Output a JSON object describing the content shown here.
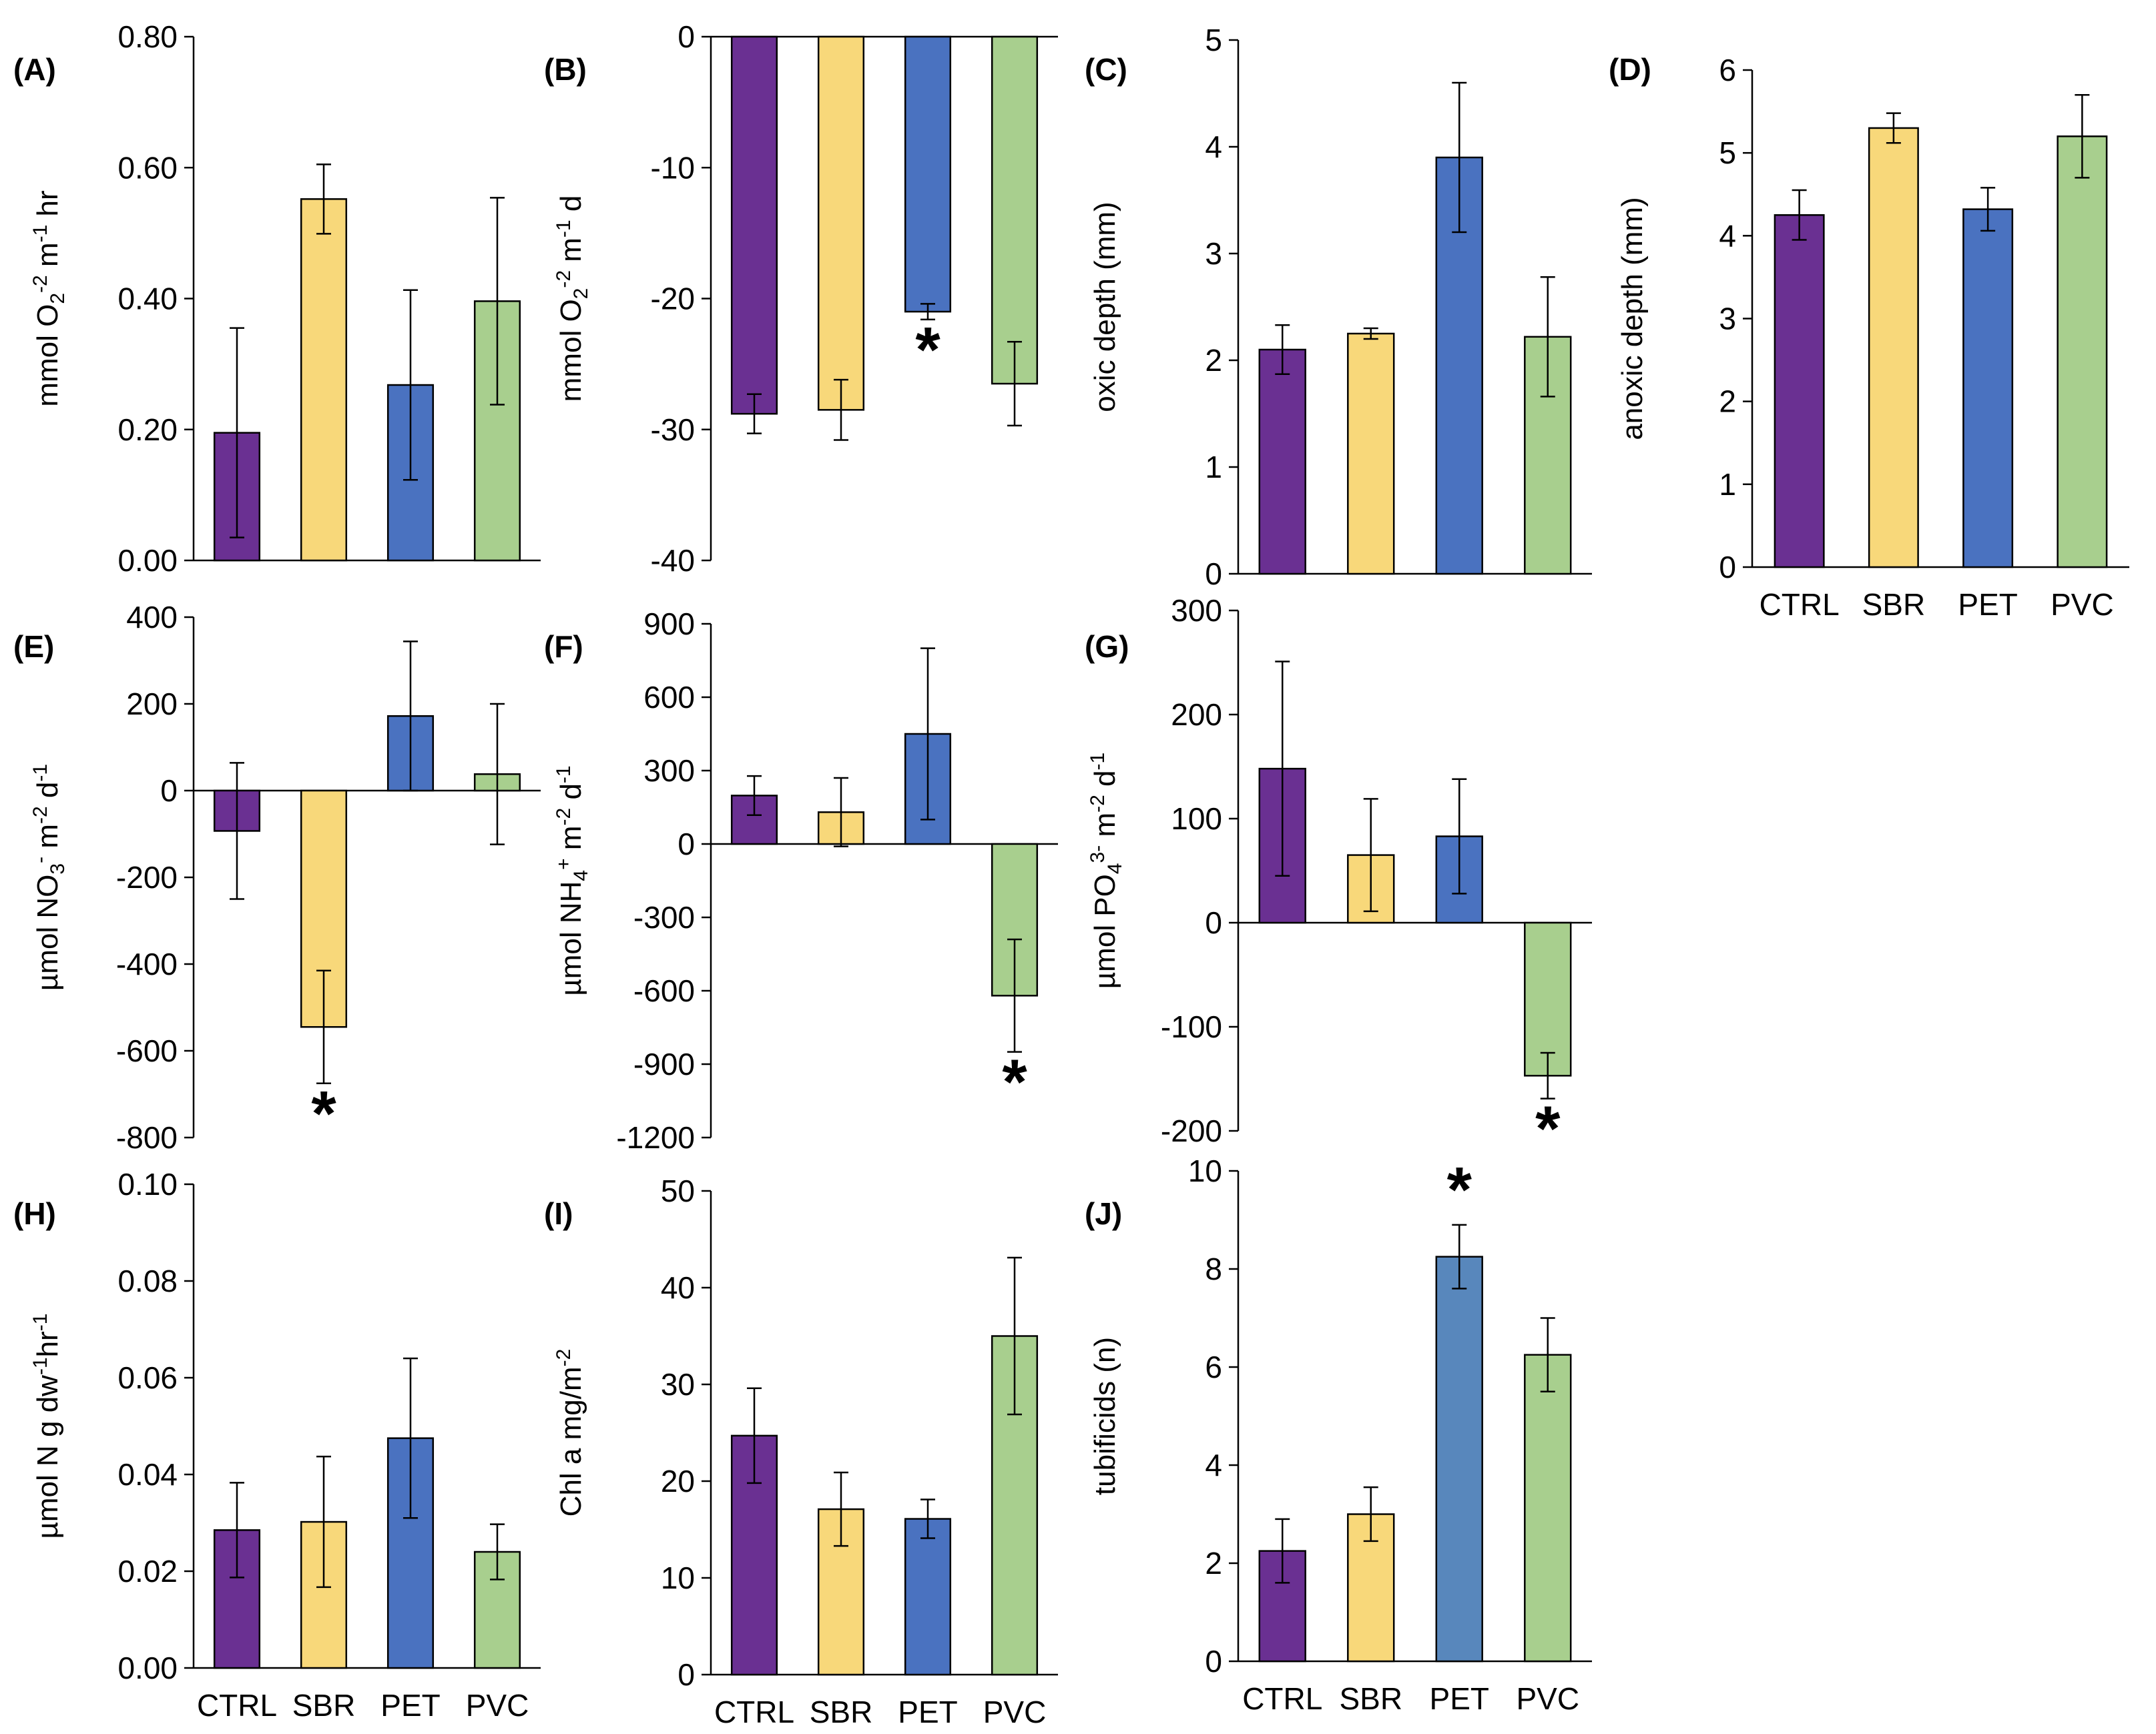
{
  "chart_data": [
    {
      "panel": "(A)",
      "type": "bar",
      "categories": [
        "CTRL",
        "SBR",
        "PET",
        "PVC"
      ],
      "values": [
        0.195,
        0.552,
        0.268,
        0.396
      ],
      "errors": [
        0.16,
        0.053,
        0.145,
        0.158
      ],
      "significant": [
        false,
        false,
        false,
        false
      ],
      "ylabel": {
        "pre": "mmol O",
        "sub": "2",
        "mid": " m",
        "sup1": "-2",
        "mid2": " hr",
        "sup2": "-1",
        "post": ""
      },
      "ylim": [
        0,
        0.8
      ],
      "ticks": [
        0,
        0.2,
        0.4,
        0.6,
        0.8
      ],
      "tick_labels": [
        "0.00",
        "0.20",
        "0.40",
        "0.60",
        "0.80"
      ],
      "show_categories": false
    },
    {
      "panel": "(B)",
      "type": "bar",
      "categories": [
        "CTRL",
        "SBR",
        "PET",
        "PVC"
      ],
      "values": [
        -28.8,
        -28.5,
        -21.0,
        -26.5
      ],
      "errors": [
        1.5,
        2.3,
        0.6,
        3.2
      ],
      "significant": [
        false,
        false,
        true,
        false
      ],
      "ylabel": {
        "pre": "mmol O",
        "sub": "2",
        "mid": " m",
        "sup1": "-2",
        "mid2": " d",
        "sup2": "-1",
        "post": ""
      },
      "ylim": [
        -40,
        0
      ],
      "ticks": [
        -40,
        -30,
        -20,
        -10,
        0
      ],
      "tick_labels": [
        "-40",
        "-30",
        "-20",
        "-10",
        "0"
      ],
      "show_categories": false
    },
    {
      "panel": "(C)",
      "type": "bar",
      "categories": [
        "CTRL",
        "SBR",
        "PET",
        "PVC"
      ],
      "values": [
        2.1,
        2.25,
        3.9,
        2.22
      ],
      "errors": [
        0.23,
        0.05,
        0.7,
        0.56
      ],
      "significant": [
        false,
        false,
        false,
        false
      ],
      "ylabel": {
        "pre": "oxic depth (mm)"
      },
      "ylim": [
        0,
        5
      ],
      "ticks": [
        0,
        1,
        2,
        3,
        4,
        5
      ],
      "tick_labels": [
        "0",
        "1",
        "2",
        "3",
        "4",
        "5"
      ],
      "show_categories": false
    },
    {
      "panel": "(D)",
      "type": "bar",
      "categories": [
        "CTRL",
        "SBR",
        "PET",
        "PVC"
      ],
      "values": [
        4.25,
        5.3,
        4.32,
        5.2
      ],
      "errors": [
        0.3,
        0.18,
        0.26,
        0.5
      ],
      "significant": [
        false,
        false,
        false,
        false
      ],
      "ylabel": {
        "pre": "anoxic depth (mm)"
      },
      "ylim": [
        0,
        6
      ],
      "ticks": [
        0,
        1,
        2,
        3,
        4,
        5,
        6
      ],
      "tick_labels": [
        "0",
        "1",
        "2",
        "3",
        "4",
        "5",
        "6"
      ],
      "show_categories": true
    },
    {
      "panel": "(E)",
      "type": "bar",
      "categories": [
        "CTRL",
        "SBR",
        "PET",
        "PVC"
      ],
      "values": [
        -93,
        -545,
        172,
        38
      ],
      "errors": [
        157,
        130,
        172,
        162
      ],
      "significant": [
        false,
        true,
        false,
        false
      ],
      "ylabel": {
        "pre": "µmol NO",
        "sub": "3",
        "sup1": "-",
        "mid": " m",
        "sup2": "-2",
        "mid2": " d",
        "sup3": "-1"
      },
      "ylim": [
        -800,
        400
      ],
      "ticks": [
        -800,
        -600,
        -400,
        -200,
        0,
        200,
        400
      ],
      "tick_labels": [
        "-800",
        "-600",
        "-400",
        "-200",
        "0",
        "200",
        "400"
      ],
      "show_categories": false
    },
    {
      "panel": "(F)",
      "type": "bar",
      "categories": [
        "CTRL",
        "SBR",
        "PET",
        "PVC"
      ],
      "values": [
        198,
        130,
        450,
        -620
      ],
      "errors": [
        80,
        140,
        350,
        230
      ],
      "significant": [
        false,
        false,
        false,
        true
      ],
      "ylabel": {
        "pre": "µmol NH",
        "sub": "4",
        "sup1": "+",
        "mid": " m",
        "sup2": "-2",
        "mid2": " d",
        "sup3": "-1"
      },
      "ylim": [
        -1200,
        900
      ],
      "ticks": [
        -1200,
        -900,
        -600,
        -300,
        0,
        300,
        600,
        900
      ],
      "tick_labels": [
        "-1200",
        "-900",
        "-600",
        "-300",
        "0",
        "300",
        "600",
        "900"
      ],
      "show_categories": false
    },
    {
      "panel": "(G)",
      "type": "bar",
      "categories": [
        "CTRL",
        "SBR",
        "PET",
        "PVC"
      ],
      "values": [
        148,
        65,
        83,
        -147
      ],
      "errors": [
        103,
        54,
        55,
        22
      ],
      "significant": [
        false,
        false,
        false,
        true
      ],
      "ylabel": {
        "pre": "µmol PO",
        "sub": "4",
        "sup1": "3-",
        "mid": " m",
        "sup2": "-2",
        "mid2": " d",
        "sup3": "-1"
      },
      "ylim": [
        -200,
        300
      ],
      "ticks": [
        -200,
        -100,
        0,
        100,
        200,
        300
      ],
      "tick_labels": [
        "-200",
        "-100",
        "0",
        "100",
        "200",
        "300"
      ],
      "show_categories": false
    },
    {
      "panel": "(H)",
      "type": "bar",
      "categories": [
        "CTRL",
        "SBR",
        "PET",
        "PVC"
      ],
      "values": [
        0.0285,
        0.0302,
        0.0475,
        0.024
      ],
      "errors": [
        0.0098,
        0.0135,
        0.0165,
        0.0057
      ],
      "significant": [
        false,
        false,
        false,
        false
      ],
      "ylabel": {
        "pre": "µmol N g dw",
        "sup1": "-1",
        "mid": "hr",
        "sup2": "-1"
      },
      "ylim": [
        0,
        0.1
      ],
      "ticks": [
        0,
        0.02,
        0.04,
        0.06,
        0.08,
        0.1
      ],
      "tick_labels": [
        "0.00",
        "0.02",
        "0.04",
        "0.06",
        "0.08",
        "0.10"
      ],
      "show_categories": true
    },
    {
      "panel": "(I)",
      "type": "bar",
      "categories": [
        "CTRL",
        "SBR",
        "PET",
        "PVC"
      ],
      "values": [
        24.7,
        17.1,
        16.1,
        35.0
      ],
      "errors": [
        4.9,
        3.8,
        2.0,
        8.1
      ],
      "significant": [
        false,
        false,
        false,
        false
      ],
      "ylabel": {
        "pre": "Chl a mg/m",
        "sup1": "-2"
      },
      "ylim": [
        0,
        50
      ],
      "ticks": [
        0,
        10,
        20,
        30,
        40,
        50
      ],
      "tick_labels": [
        "0",
        "10",
        "20",
        "30",
        "40",
        "50"
      ],
      "show_categories": true
    },
    {
      "panel": "(J)",
      "type": "bar",
      "categories": [
        "CTRL",
        "SBR",
        "PET",
        "PVC"
      ],
      "values": [
        2.25,
        3.0,
        8.25,
        6.25
      ],
      "errors": [
        0.65,
        0.55,
        0.65,
        0.75
      ],
      "significant": [
        false,
        false,
        true,
        false
      ],
      "ylabel": {
        "pre": "tubificids (n)"
      },
      "ylim": [
        0,
        10
      ],
      "ticks": [
        0,
        2,
        4,
        6,
        8,
        10
      ],
      "tick_labels": [
        "0",
        "2",
        "4",
        "6",
        "8",
        "10"
      ],
      "show_categories": true
    }
  ],
  "bar_colors": [
    "#6A3092",
    "#F8D87A",
    "#4A72C0",
    "#A8CF8E"
  ],
  "bar_colors_panel_j": [
    "#6A3092",
    "#F8D87A",
    "#5887BC",
    "#A8CF8E"
  ],
  "significance_marker": "*"
}
